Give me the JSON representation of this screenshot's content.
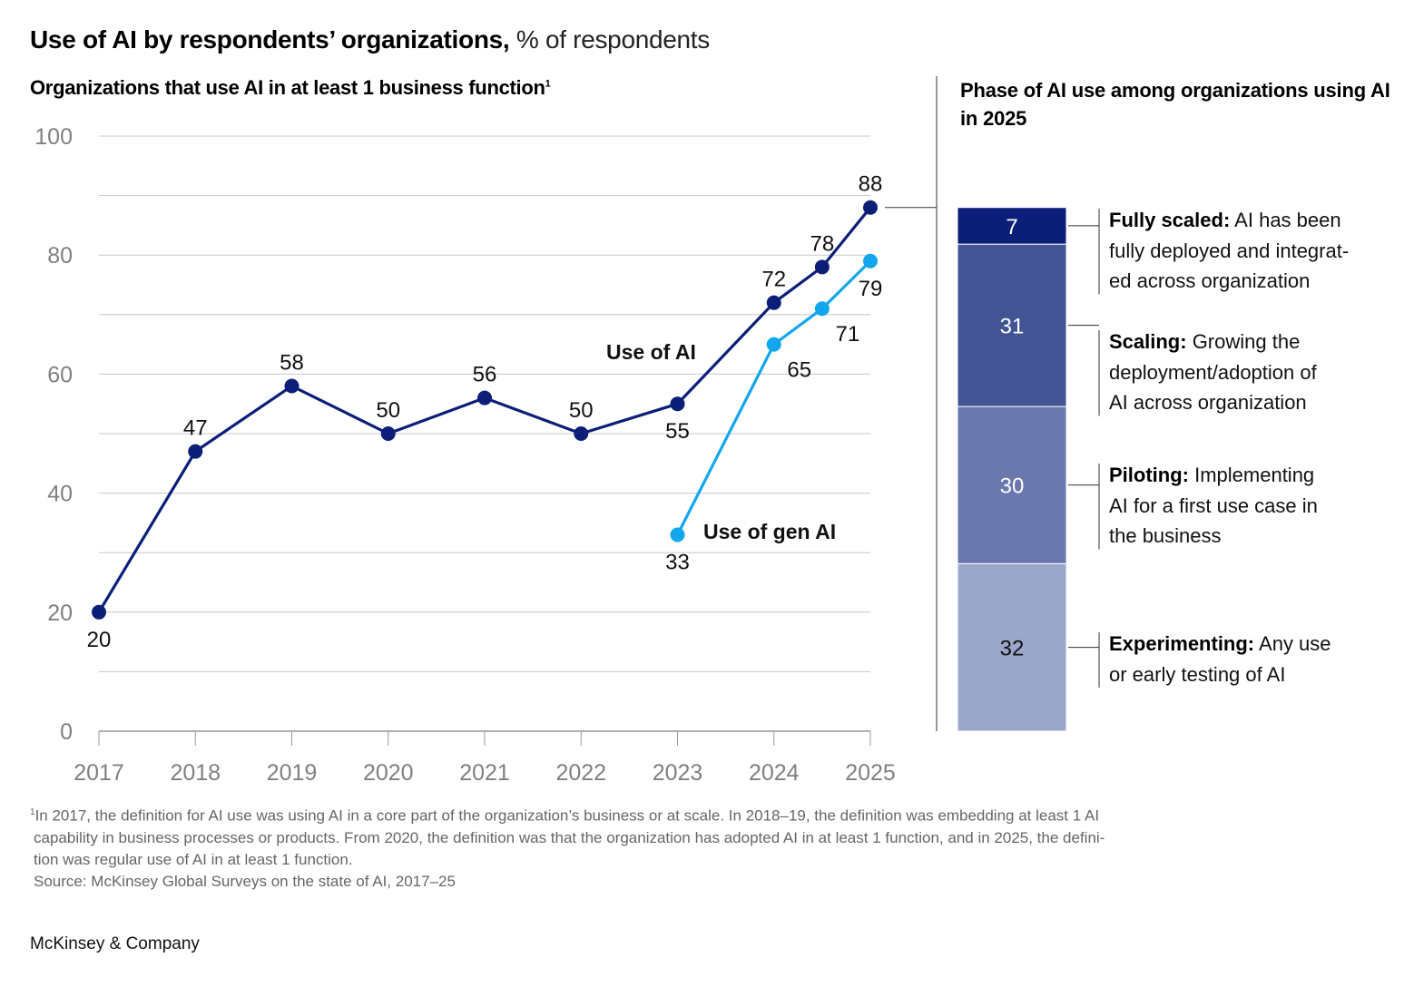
{
  "header": {
    "title_bold": "Use of AI by respondents’ organizations,",
    "title_light": " % of respondents",
    "left_subtitle": "Organizations that use AI in at least 1 business function",
    "left_subtitle_footnote_mark": "1",
    "right_subtitle": "Phase of AI use among organizations using AI in 2025"
  },
  "chart_data": [
    {
      "type": "line",
      "title": "Organizations that use AI in at least 1 business function",
      "xlabel": "",
      "ylabel": "% of respondents",
      "ylim": [
        0,
        100
      ],
      "yticks": [
        0,
        20,
        40,
        60,
        80,
        100
      ],
      "ytick_labels": [
        "0",
        "20",
        "40",
        "60",
        "80",
        "100"
      ],
      "xticks": [
        2017,
        2018,
        2019,
        2020,
        2021,
        2022,
        2023,
        2024,
        2025
      ],
      "xtick_labels": [
        "2017",
        "2018",
        "2019",
        "2020",
        "2021",
        "2022",
        "2023",
        "2024",
        "2025"
      ],
      "xlim": [
        2017,
        2025
      ],
      "grid": true,
      "series": [
        {
          "name": "Use of AI",
          "color": "#0b1f78",
          "x": [
            2017,
            2018,
            2019,
            2020,
            2021,
            2022,
            2023,
            2024,
            2024.5,
            2025
          ],
          "values": [
            20,
            47,
            58,
            50,
            56,
            50,
            55,
            72,
            78,
            88
          ],
          "label_positions": [
            "below",
            "above",
            "above",
            "above",
            "above",
            "above",
            "below",
            "above",
            "above",
            "above"
          ]
        },
        {
          "name": "Use of gen AI",
          "color": "#12a7ec",
          "x": [
            2023,
            2024,
            2024.5,
            2025
          ],
          "values": [
            33,
            65,
            71,
            79
          ],
          "label_positions": [
            "below",
            "below-right",
            "below-right",
            "below"
          ]
        }
      ]
    },
    {
      "type": "bar",
      "stacked": true,
      "title": "Phase of AI use among organizations using AI in 2025",
      "categories": [
        "2025"
      ],
      "series": [
        {
          "name": "Experimenting",
          "value": 32,
          "color": "#9ba6cb",
          "label_color": "#111111",
          "description": "Any use or early testing of AI"
        },
        {
          "name": "Piloting",
          "value": 30,
          "color": "#6a78ae",
          "label_color": "#ffffff",
          "description": "Implementing AI for a first use case in the business"
        },
        {
          "name": "Scaling",
          "value": 31,
          "color": "#425494",
          "label_color": "#ffffff",
          "description": "Growing the deployment/adoption of AI across organization"
        },
        {
          "name": "Fully scaled",
          "value": 7,
          "color": "#0b1f78",
          "label_color": "#ffffff",
          "description": "AI has been fully deployed and integrated across organization"
        }
      ],
      "total": 88
    }
  ],
  "phase_labels": [
    {
      "name": "Fully scaled:",
      "lines": [
        " AI has been",
        "fully deployed and integrat-",
        "ed across organization"
      ]
    },
    {
      "name": "Scaling:",
      "lines": [
        " Growing the",
        "deployment/adoption of",
        "AI across organization"
      ]
    },
    {
      "name": "Piloting:",
      "lines": [
        " Implementing",
        "AI for a first use case in",
        "the business"
      ]
    },
    {
      "name": "Experimenting:",
      "lines": [
        " Any use",
        "or early testing of AI"
      ]
    }
  ],
  "footnote": {
    "lines": [
      "In 2017, the definition for AI use was using AI in a core part of the organization’s business or at scale. In 2018–19, the definition was embedding at least 1 AI",
      "capability in business processes or products. From 2020, the definition was that the organization has adopted AI in at least 1 function, and in 2025, the defini-",
      "tion was regular use of AI in at least 1 function."
    ],
    "mark": "1",
    "source": "Source: McKinsey Global Surveys on the state of AI, 2017–25"
  },
  "brand": "McKinsey & Company",
  "colors": {
    "grid": "#c8c8c8",
    "axis_text": "#808080",
    "divider": "#555555"
  }
}
